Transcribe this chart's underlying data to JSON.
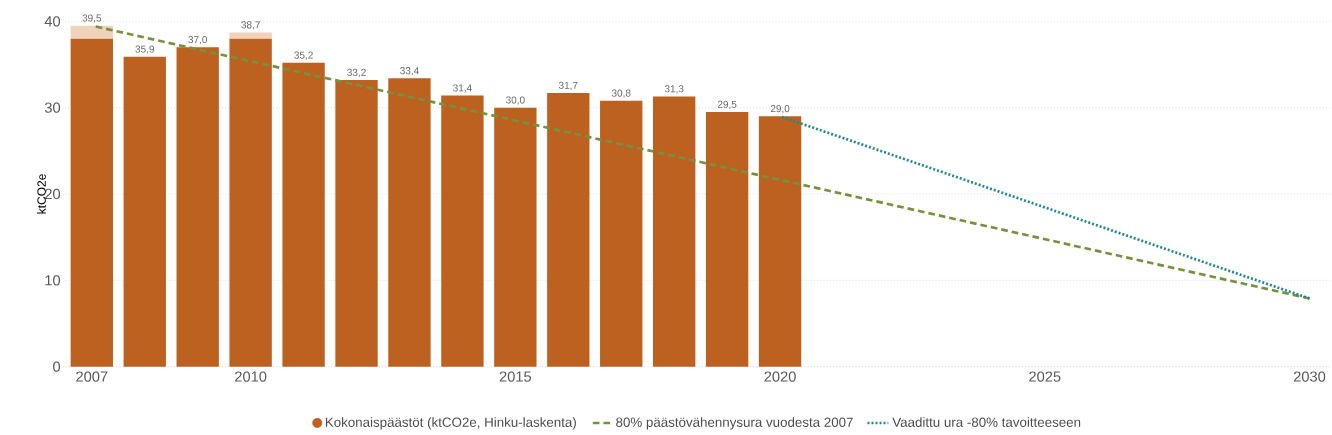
{
  "chart_data": {
    "type": "bar",
    "stacked": true,
    "x": [
      2007,
      2008,
      2009,
      2010,
      2011,
      2012,
      2013,
      2014,
      2015,
      2016,
      2017,
      2018,
      2019,
      2020
    ],
    "series": [
      {
        "name": "Kokonaispäästöt (ktCO2e, Hinku-laskenta)",
        "color": "#bd6120",
        "values": [
          38.0,
          35.9,
          37.0,
          38.0,
          35.2,
          33.2,
          33.4,
          31.4,
          30.0,
          31.7,
          30.8,
          31.3,
          29.5,
          29.0
        ]
      },
      {
        "color": "#f0d2bd",
        "values": [
          1.5,
          null,
          null,
          0.7,
          null,
          null,
          null,
          null,
          null,
          null,
          null,
          null,
          null,
          null
        ]
      },
      {
        "type": "line",
        "name": "80% päästövähennysura vuodesta 2007",
        "color": "#76923c",
        "x": [
          2007,
          2030
        ],
        "values": [
          39.5,
          7.9
        ],
        "line_style": "dashed"
      },
      {
        "type": "line",
        "name": "Vaadittu ura -80% tavoitteeseen",
        "color": "#1f8a8f",
        "x": [
          2020,
          2030
        ],
        "values": [
          29.0,
          7.9
        ],
        "line_style": "dotted"
      }
    ],
    "totals": [
      "39,5",
      "35,9",
      "37,0",
      "38,7",
      "35,2",
      "33,2",
      "33,4",
      "31,4",
      "30,0",
      "31,7",
      "30,8",
      "31,3",
      "29,5",
      "29,0"
    ],
    "ylabel": "ktCO2e",
    "xlim": [
      2006.5,
      2030.4
    ],
    "ylim": [
      0,
      40
    ],
    "xticks": [
      2007,
      2010,
      2015,
      2020,
      2025,
      2030
    ],
    "yticks": [
      0,
      10,
      20,
      30,
      40
    ],
    "grid": "y",
    "legend": "bottom"
  }
}
